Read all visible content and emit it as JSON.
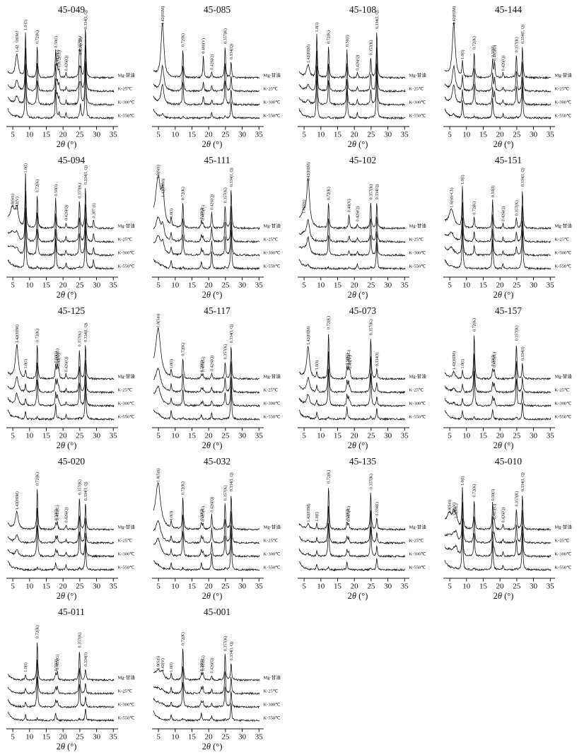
{
  "figure": {
    "xlabel": "2θ (°)",
    "x_ticks": [
      5,
      10,
      15,
      20,
      25,
      30,
      35
    ],
    "x_range": [
      3.5,
      36
    ],
    "trace_labels": [
      "Mg-甘油",
      "K-25℃",
      "K-300℃",
      "K-550℃"
    ],
    "line_color": "#161616"
  },
  "chart_data": [
    {
      "type": "line",
      "title": "45-049",
      "xlabel": "2θ (°)",
      "x_range": [
        3.5,
        36
      ],
      "peaks": [
        {
          "label": "1.42（HIM）",
          "two_theta": 6.2,
          "intensity": 40
        },
        {
          "label": "1.0 (I)",
          "two_theta": 8.8,
          "intensity": 78
        },
        {
          "label": "0.72(K)",
          "two_theta": 12.3,
          "intensity": 55
        },
        {
          "label": "0.50(I)",
          "two_theta": 17.8,
          "intensity": 48
        },
        {
          "label": "0.485(G)",
          "two_theta": 18.3,
          "intensity": 18
        },
        {
          "label": "0.472(Ch)",
          "two_theta": 18.8,
          "intensity": 14
        },
        {
          "label": "0.426(Q)",
          "two_theta": 20.9,
          "intensity": 8
        },
        {
          "label": "0.357(K)",
          "two_theta": 24.9,
          "intensity": 42
        },
        {
          "label": "0.354(Ch)",
          "two_theta": 25.2,
          "intensity": 36
        },
        {
          "label": "0.334(I, Q)",
          "two_theta": 26.7,
          "intensity": 88
        }
      ]
    },
    {
      "type": "line",
      "title": "45-085",
      "xlabel": "2θ (°)",
      "x_range": [
        3.5,
        36
      ],
      "peaks": [
        {
          "label": "1.42(HIM)",
          "two_theta": 6.2,
          "intensity": 95
        },
        {
          "label": "0.72(K)",
          "two_theta": 12.3,
          "intensity": 50
        },
        {
          "label": "0.480(V)",
          "two_theta": 18.4,
          "intensity": 38
        },
        {
          "label": "0.426(Q)",
          "two_theta": 20.9,
          "intensity": 10
        },
        {
          "label": "0.357(K)",
          "two_theta": 24.9,
          "intensity": 55
        },
        {
          "label": "0.334(Q)",
          "two_theta": 26.7,
          "intensity": 28
        }
      ]
    },
    {
      "type": "line",
      "title": "45-108",
      "xlabel": "2θ (°)",
      "x_range": [
        3.5,
        36
      ],
      "peaks": [
        {
          "label": "1.42(HIM)",
          "two_theta": 6.2,
          "intensity": 22
        },
        {
          "label": "1.0(I)",
          "two_theta": 8.8,
          "intensity": 75
        },
        {
          "label": "0.72(K)",
          "two_theta": 12.3,
          "intensity": 55
        },
        {
          "label": "0.50(I)",
          "two_theta": 17.8,
          "intensity": 50
        },
        {
          "label": "0.426(Q)",
          "two_theta": 20.9,
          "intensity": 9
        },
        {
          "label": "0.357(K)",
          "two_theta": 24.9,
          "intensity": 35
        },
        {
          "label": "0.334(I, Q)",
          "two_theta": 26.7,
          "intensity": 82
        }
      ]
    },
    {
      "type": "line",
      "title": "45-144",
      "xlabel": "2θ (°)",
      "x_range": [
        3.5,
        36
      ],
      "peaks": [
        {
          "label": "1.42(HIM)",
          "two_theta": 6.2,
          "intensity": 95
        },
        {
          "label": "1.0(I)",
          "two_theta": 8.8,
          "intensity": 28
        },
        {
          "label": "0.72(K)",
          "two_theta": 12.3,
          "intensity": 45
        },
        {
          "label": "0.50(I)",
          "two_theta": 17.8,
          "intensity": 32
        },
        {
          "label": "0.485(G)",
          "two_theta": 18.4,
          "intensity": 26
        },
        {
          "label": "0.426(Q)",
          "two_theta": 20.9,
          "intensity": 8
        },
        {
          "label": "0.357(K)",
          "two_theta": 24.9,
          "intensity": 40
        },
        {
          "label": "0.334(I, Q)",
          "two_theta": 26.7,
          "intensity": 55
        }
      ]
    },
    {
      "type": "line",
      "title": "45-094",
      "xlabel": "2θ (°)",
      "x_range": [
        3.5,
        36
      ],
      "peaks": [
        {
          "label": "1.8(Sm)",
          "two_theta": 4.9,
          "intensity": 32
        },
        {
          "label": "1.42(V)",
          "two_theta": 6.2,
          "intensity": 28
        },
        {
          "label": "1.0(I)",
          "two_theta": 8.8,
          "intensity": 92
        },
        {
          "label": "0.72(K)",
          "two_theta": 12.3,
          "intensity": 58
        },
        {
          "label": "0.50(I)",
          "two_theta": 17.8,
          "intensity": 52
        },
        {
          "label": "0.426(Q)",
          "two_theta": 20.9,
          "intensity": 10
        },
        {
          "label": "0.357(K)",
          "two_theta": 24.9,
          "intensity": 48
        },
        {
          "label": "0.334(I, Q)",
          "two_theta": 26.7,
          "intensity": 72
        },
        {
          "label": "0.307 (I)",
          "two_theta": 29.1,
          "intensity": 14
        }
      ]
    },
    {
      "type": "line",
      "title": "45-111",
      "xlabel": "2θ (°)",
      "x_range": [
        3.5,
        36
      ],
      "peaks": [
        {
          "label": "1.8(Sm)",
          "two_theta": 4.9,
          "intensity": 82
        },
        {
          "label": "1.42(HIM)",
          "two_theta": 6.3,
          "intensity": 50
        },
        {
          "label": "1.0(I)",
          "two_theta": 8.8,
          "intensity": 14
        },
        {
          "label": "0.72(K)",
          "two_theta": 12.3,
          "intensity": 45
        },
        {
          "label": "0.50(I)",
          "two_theta": 17.8,
          "intensity": 12
        },
        {
          "label": "0.485(G)",
          "two_theta": 18.3,
          "intensity": 10
        },
        {
          "label": "0.426(Q)",
          "two_theta": 20.9,
          "intensity": 28
        },
        {
          "label": "0.357(K)",
          "two_theta": 24.9,
          "intensity": 40
        },
        {
          "label": "0.334(I, Q)",
          "two_theta": 26.7,
          "intensity": 68
        }
      ]
    },
    {
      "type": "line",
      "title": "45-102",
      "xlabel": "2θ (°)",
      "x_range": [
        3.5,
        36
      ],
      "peaks": [
        {
          "label": "1.8(Sm)",
          "two_theta": 4.9,
          "intensity": 22
        },
        {
          "label": "1.42(HIM)",
          "two_theta": 6.2,
          "intensity": 78
        },
        {
          "label": "0.72(K)",
          "two_theta": 12.3,
          "intensity": 45
        },
        {
          "label": "0.48(V)",
          "two_theta": 18.4,
          "intensity": 24
        },
        {
          "label": "0.426(Q)",
          "two_theta": 20.9,
          "intensity": 8
        },
        {
          "label": "0.357(K)",
          "two_theta": 24.9,
          "intensity": 46
        },
        {
          "label": "0.334(Q)",
          "two_theta": 26.7,
          "intensity": 46
        }
      ]
    },
    {
      "type": "line",
      "title": "45-151",
      "xlabel": "2θ (°)",
      "x_range": [
        3.5,
        36
      ],
      "peaks": [
        {
          "label": "1.6(Sm-Ch)",
          "two_theta": 5.5,
          "intensity": 32
        },
        {
          "label": "1.0(I)",
          "two_theta": 8.8,
          "intensity": 72
        },
        {
          "label": "0.72(K)",
          "two_theta": 12.3,
          "intensity": 20
        },
        {
          "label": "0.50(I)",
          "two_theta": 17.8,
          "intensity": 50
        },
        {
          "label": "0.426(Q)",
          "two_theta": 20.9,
          "intensity": 8
        },
        {
          "label": "0.357(K)",
          "two_theta": 24.9,
          "intensity": 18
        },
        {
          "label": "0.334(I, Q)",
          "two_theta": 26.7,
          "intensity": 68
        }
      ]
    },
    {
      "type": "line",
      "title": "45-125",
      "xlabel": "2θ (°)",
      "x_range": [
        3.5,
        36
      ],
      "peaks": [
        {
          "label": "1.42(HIM)",
          "two_theta": 6.2,
          "intensity": 58
        },
        {
          "label": "1.0(I)",
          "two_theta": 8.8,
          "intensity": 14
        },
        {
          "label": "0.72(K)",
          "two_theta": 12.3,
          "intensity": 60
        },
        {
          "label": "0.50(I)",
          "two_theta": 17.8,
          "intensity": 24
        },
        {
          "label": "0.485(G)",
          "two_theta": 18.3,
          "intensity": 22
        },
        {
          "label": "0.48(V)",
          "two_theta": 18.7,
          "intensity": 18
        },
        {
          "label": "0.426(Q)",
          "two_theta": 20.9,
          "intensity": 8
        },
        {
          "label": "0.357(K)",
          "two_theta": 24.9,
          "intensity": 52
        },
        {
          "label": "0.334(I, Q)",
          "two_theta": 26.7,
          "intensity": 60
        }
      ]
    },
    {
      "type": "line",
      "title": "45-117",
      "xlabel": "2θ (°)",
      "x_range": [
        3.5,
        36
      ],
      "peaks": [
        {
          "label": "1.8(Sm)",
          "two_theta": 4.9,
          "intensity": 85
        },
        {
          "label": "1.0(I)",
          "two_theta": 8.8,
          "intensity": 14
        },
        {
          "label": "0.72(K)",
          "two_theta": 12.3,
          "intensity": 36
        },
        {
          "label": "0.50(I)",
          "two_theta": 17.8,
          "intensity": 8
        },
        {
          "label": "0.485(G)",
          "two_theta": 18.3,
          "intensity": 8
        },
        {
          "label": "0.426(Q)",
          "two_theta": 20.9,
          "intensity": 10
        },
        {
          "label": "0.357(K)",
          "two_theta": 24.9,
          "intensity": 30
        },
        {
          "label": "0.334(I, Q)",
          "two_theta": 26.7,
          "intensity": 58
        }
      ]
    },
    {
      "type": "line",
      "title": "45-073",
      "xlabel": "2θ (°)",
      "x_range": [
        3.5,
        36
      ],
      "peaks": [
        {
          "label": "1.42(HIM)",
          "two_theta": 6.2,
          "intensity": 55
        },
        {
          "label": "1.0(I)",
          "two_theta": 8.8,
          "intensity": 12
        },
        {
          "label": "0.72(K)",
          "two_theta": 12.3,
          "intensity": 82
        },
        {
          "label": "0.50(I)",
          "two_theta": 17.8,
          "intensity": 20
        },
        {
          "label": "0.485(G)",
          "two_theta": 18.3,
          "intensity": 20
        },
        {
          "label": "0.48(V)",
          "two_theta": 18.7,
          "intensity": 14
        },
        {
          "label": "0.357(K)",
          "two_theta": 24.9,
          "intensity": 72
        },
        {
          "label": "0.334(I)",
          "two_theta": 26.7,
          "intensity": 18
        }
      ]
    },
    {
      "type": "line",
      "title": "45-157",
      "xlabel": "2θ (°)",
      "x_range": [
        3.5,
        36
      ],
      "peaks": [
        {
          "label": "1.42(HIM)",
          "two_theta": 6.2,
          "intensity": 12
        },
        {
          "label": "1.0(I)",
          "two_theta": 8.8,
          "intensity": 14
        },
        {
          "label": "0.72(K)",
          "two_theta": 12.3,
          "intensity": 78
        },
        {
          "label": "0.50(I)",
          "two_theta": 17.8,
          "intensity": 18
        },
        {
          "label": "0.485(G)",
          "two_theta": 18.3,
          "intensity": 16
        },
        {
          "label": "0.357(K)",
          "two_theta": 24.9,
          "intensity": 62
        },
        {
          "label": "0.334(I)",
          "two_theta": 26.7,
          "intensity": 28
        }
      ]
    },
    {
      "type": "line",
      "title": "45-020",
      "xlabel": "2θ (°)",
      "x_range": [
        3.5,
        36
      ],
      "peaks": [
        {
          "label": "1.42(HIM)",
          "two_theta": 6.2,
          "intensity": 30
        },
        {
          "label": "0.72(K)",
          "two_theta": 12.3,
          "intensity": 72
        },
        {
          "label": "0.50(I)",
          "two_theta": 17.8,
          "intensity": 12
        },
        {
          "label": "0.485(G)",
          "two_theta": 18.3,
          "intensity": 12
        },
        {
          "label": "0.426(Q)",
          "two_theta": 20.9,
          "intensity": 8
        },
        {
          "label": "0.357(K)",
          "two_theta": 24.9,
          "intensity": 56
        },
        {
          "label": "0.334(I, Q)",
          "two_theta": 26.7,
          "intensity": 46
        }
      ]
    },
    {
      "type": "line",
      "title": "45-032",
      "xlabel": "2θ (°)",
      "x_range": [
        3.5,
        36
      ],
      "peaks": [
        {
          "label": "1.8(Sm)",
          "two_theta": 4.9,
          "intensity": 78
        },
        {
          "label": "1.0(I)",
          "two_theta": 8.8,
          "intensity": 12
        },
        {
          "label": "0.72(K)",
          "two_theta": 12.3,
          "intensity": 56
        },
        {
          "label": "0.50(I)",
          "two_theta": 17.8,
          "intensity": 12
        },
        {
          "label": "0.485(G)",
          "two_theta": 18.3,
          "intensity": 10
        },
        {
          "label": "0.426(Q)",
          "two_theta": 20.9,
          "intensity": 26
        },
        {
          "label": "0.357(K)",
          "two_theta": 24.9,
          "intensity": 46
        },
        {
          "label": "0.334(I, Q)",
          "two_theta": 26.7,
          "intensity": 62
        }
      ]
    },
    {
      "type": "line",
      "title": "45-135",
      "xlabel": "2θ (°)",
      "x_range": [
        3.5,
        36
      ],
      "peaks": [
        {
          "label": "1.42(HIM)",
          "two_theta": 6.2,
          "intensity": 9
        },
        {
          "label": "1.0(I)",
          "two_theta": 8.8,
          "intensity": 10
        },
        {
          "label": "0.72(K)",
          "two_theta": 12.3,
          "intensity": 76
        },
        {
          "label": "0.50(I)",
          "two_theta": 17.8,
          "intensity": 12
        },
        {
          "label": "0.485(G)",
          "two_theta": 18.3,
          "intensity": 10
        },
        {
          "label": "0.357(K)",
          "two_theta": 24.9,
          "intensity": 66
        },
        {
          "label": "0.334(I)",
          "two_theta": 26.7,
          "intensity": 20
        }
      ]
    },
    {
      "type": "line",
      "title": "45-010",
      "xlabel": "2θ (°)",
      "x_range": [
        3.5,
        36
      ],
      "peaks": [
        {
          "label": "1.8(Sm)",
          "two_theta": 4.9,
          "intensity": 24
        },
        {
          "label": "1.42(V)",
          "two_theta": 6.2,
          "intensity": 20
        },
        {
          "label": "1.3(ML)",
          "two_theta": 6.9,
          "intensity": 16
        },
        {
          "label": "1.0(I)",
          "two_theta": 8.8,
          "intensity": 72
        },
        {
          "label": "0.72(K)",
          "two_theta": 12.3,
          "intensity": 52
        },
        {
          "label": "0.50(I)",
          "two_theta": 17.8,
          "intensity": 46
        },
        {
          "label": "0.485(G)",
          "two_theta": 18.3,
          "intensity": 14
        },
        {
          "label": "0.426(Q)",
          "two_theta": 20.9,
          "intensity": 8
        },
        {
          "label": "0.357(K)",
          "two_theta": 24.9,
          "intensity": 36
        },
        {
          "label": "0.334(I, Q)",
          "two_theta": 26.7,
          "intensity": 62
        }
      ]
    },
    {
      "type": "line",
      "title": "45-011",
      "xlabel": "2θ (°)",
      "x_range": [
        3.5,
        36
      ],
      "peaks": [
        {
          "label": "1.0(I)",
          "two_theta": 8.8,
          "intensity": 10
        },
        {
          "label": "0.72(K)",
          "two_theta": 12.3,
          "intensity": 68
        },
        {
          "label": "0.50(I)",
          "two_theta": 17.8,
          "intensity": 12
        },
        {
          "label": "0.485(G)",
          "two_theta": 18.3,
          "intensity": 14
        },
        {
          "label": "0.357(K)",
          "two_theta": 24.9,
          "intensity": 52
        },
        {
          "label": "0.334(I)",
          "two_theta": 26.7,
          "intensity": 20
        }
      ]
    },
    {
      "type": "line",
      "title": "45-001",
      "xlabel": "2θ (°)",
      "x_range": [
        3.5,
        36
      ],
      "peaks": [
        {
          "label": "1.8(Sm)",
          "two_theta": 4.9,
          "intensity": 14
        },
        {
          "label": "1.42(V)",
          "two_theta": 6.2,
          "intensity": 11
        },
        {
          "label": "1.0(I)",
          "two_theta": 8.8,
          "intensity": 10
        },
        {
          "label": "0.72(K)",
          "two_theta": 12.3,
          "intensity": 56
        },
        {
          "label": "0.50(I)",
          "two_theta": 17.8,
          "intensity": 12
        },
        {
          "label": "0.485(G)",
          "two_theta": 18.3,
          "intensity": 12
        },
        {
          "label": "0.426(Q)",
          "two_theta": 20.9,
          "intensity": 8
        },
        {
          "label": "0.357(K)",
          "two_theta": 24.9,
          "intensity": 46
        },
        {
          "label": "0.334(I, Q)",
          "two_theta": 26.7,
          "intensity": 30
        }
      ]
    }
  ]
}
